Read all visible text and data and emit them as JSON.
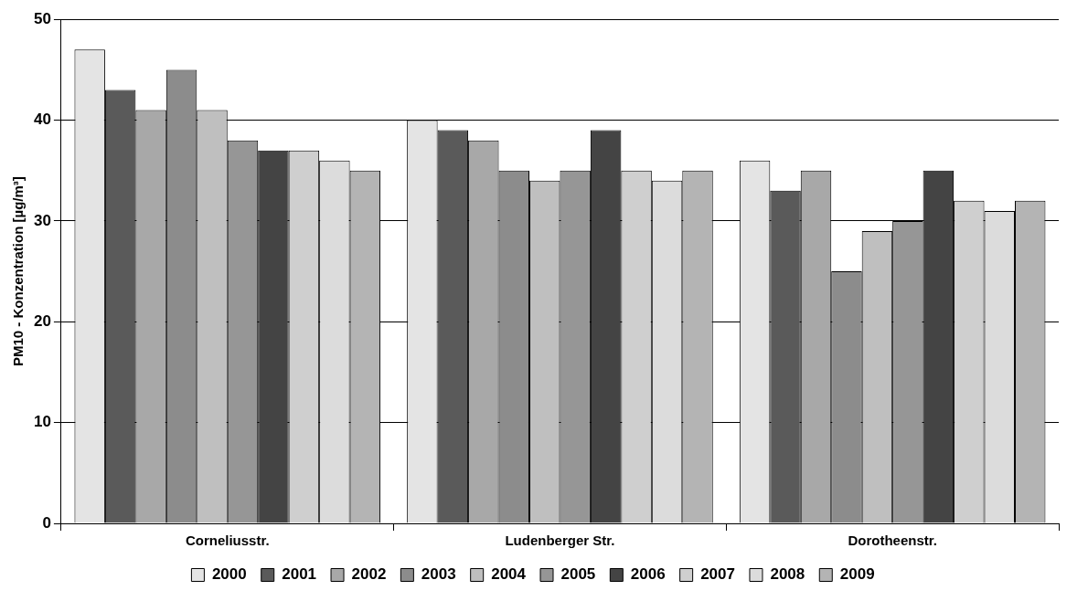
{
  "chart_data": {
    "type": "bar",
    "ylabel": "PM10 - Konzentration [µg/m³]",
    "categories": [
      "Corneliusstr.",
      "Ludenberger Str.",
      "Dorotheenstr."
    ],
    "series": [
      {
        "name": "2000",
        "color": "#e4e4e4",
        "values": [
          47,
          40,
          36
        ]
      },
      {
        "name": "2001",
        "color": "#5a5a5a",
        "values": [
          43,
          39,
          33
        ]
      },
      {
        "name": "2002",
        "color": "#a8a8a8",
        "values": [
          41,
          38,
          35
        ]
      },
      {
        "name": "2003",
        "color": "#8c8c8c",
        "values": [
          45,
          35,
          25
        ]
      },
      {
        "name": "2004",
        "color": "#bfbfbf",
        "values": [
          41,
          34,
          29
        ]
      },
      {
        "name": "2005",
        "color": "#969696",
        "values": [
          38,
          35,
          30
        ]
      },
      {
        "name": "2006",
        "color": "#444444",
        "values": [
          37,
          39,
          35
        ]
      },
      {
        "name": "2007",
        "color": "#cfcfcf",
        "values": [
          37,
          35,
          32
        ]
      },
      {
        "name": "2008",
        "color": "#dcdcdc",
        "values": [
          36,
          34,
          31
        ]
      },
      {
        "name": "2009",
        "color": "#b4b4b4",
        "values": [
          35,
          35,
          32
        ]
      }
    ],
    "ylim": [
      0,
      50
    ],
    "yticks": [
      0,
      10,
      20,
      30,
      40,
      50
    ],
    "grid": "y",
    "legend": "bottom"
  }
}
